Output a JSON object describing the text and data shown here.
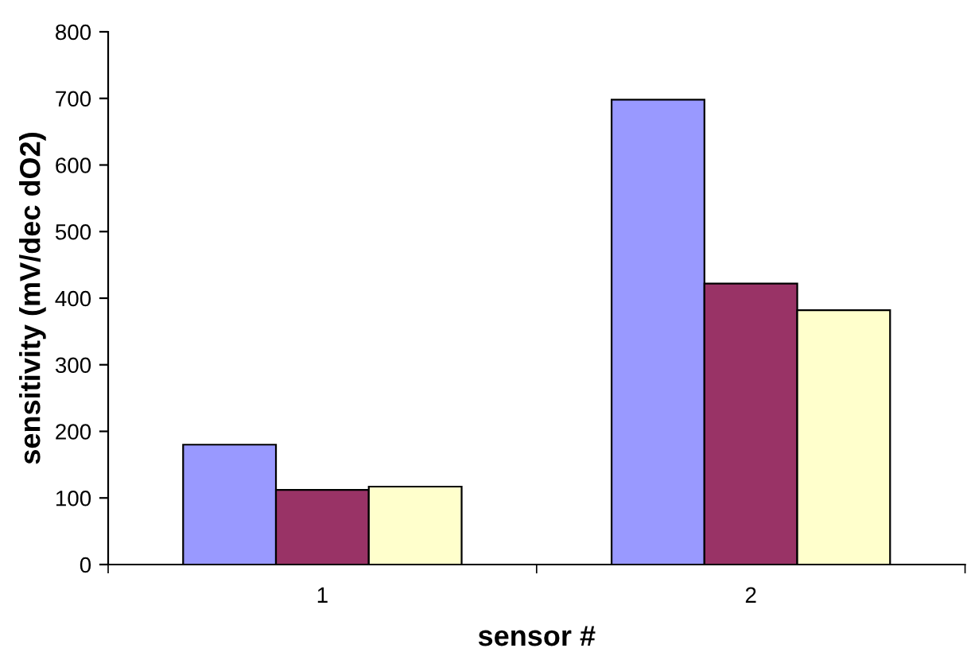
{
  "chart_data": {
    "type": "bar",
    "xlabel": "sensor #",
    "ylabel": "sensitivity (mV/dec dO2)",
    "categories": [
      "1",
      "2"
    ],
    "series": [
      {
        "color": "#9999ff",
        "values": [
          180,
          698
        ]
      },
      {
        "color": "#993366",
        "values": [
          112,
          422
        ]
      },
      {
        "color": "#ffffcc",
        "values": [
          117,
          382
        ]
      }
    ],
    "ylim": [
      0,
      800
    ],
    "yticks": [
      0,
      100,
      200,
      300,
      400,
      500,
      600,
      700,
      800
    ],
    "grid": false,
    "legend": false
  }
}
